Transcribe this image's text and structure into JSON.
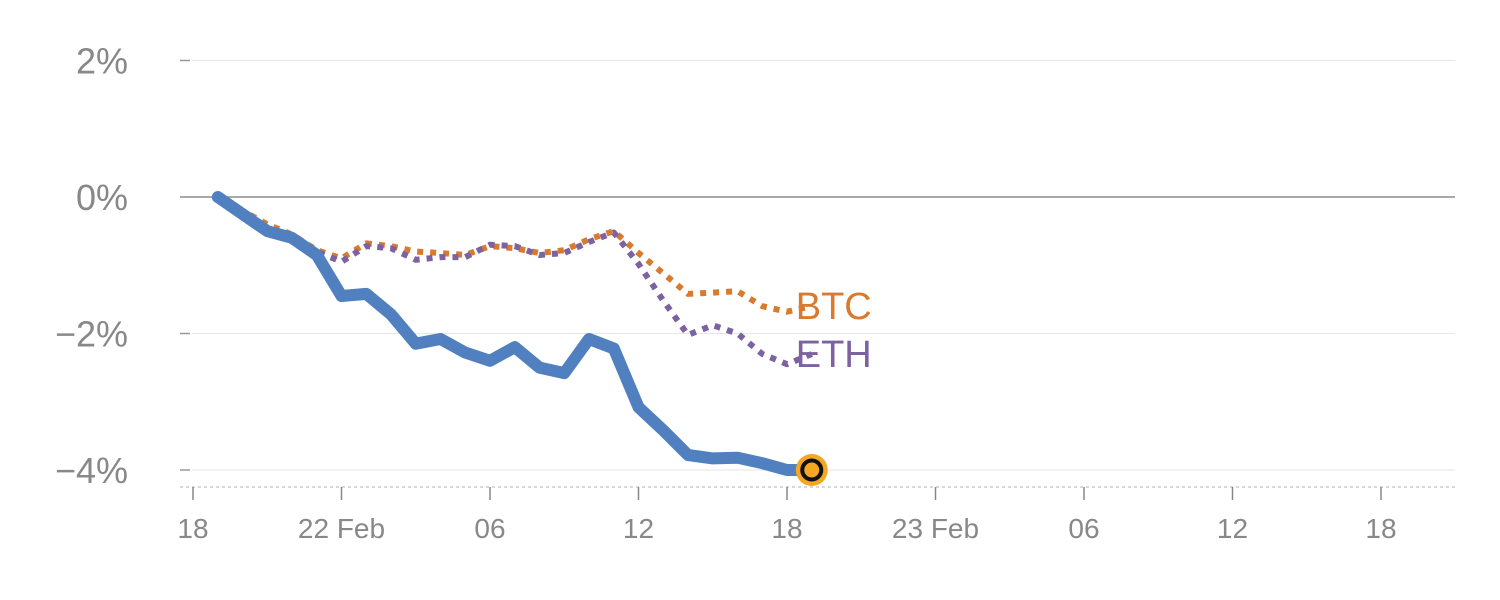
{
  "chart_data": {
    "type": "line",
    "title": "",
    "xlabel": "",
    "ylabel": "",
    "x_range": [
      "2022-02-21T18:00",
      "2022-02-23T21:00"
    ],
    "ylim": [
      -4.25,
      2.2
    ],
    "y_ticks": [
      2,
      0,
      -2,
      -4
    ],
    "y_tick_labels": [
      "2%",
      "0%",
      "−2%",
      "−4%"
    ],
    "x_ticks": [
      {
        "t": "2022-02-21T18:00",
        "label": "18"
      },
      {
        "t": "2022-02-22T00:00",
        "label": "22 Feb"
      },
      {
        "t": "2022-02-22T06:00",
        "label": "06"
      },
      {
        "t": "2022-02-22T12:00",
        "label": "12"
      },
      {
        "t": "2022-02-22T18:00",
        "label": "18"
      },
      {
        "t": "2022-02-23T00:00",
        "label": "23 Feb"
      },
      {
        "t": "2022-02-23T06:00",
        "label": "06"
      },
      {
        "t": "2022-02-23T12:00",
        "label": "12"
      },
      {
        "t": "2022-02-23T18:00",
        "label": "18"
      }
    ],
    "grid": true,
    "series": [
      {
        "name": "",
        "color": "#5080bf",
        "style": "solid",
        "end_marker": true,
        "points": [
          [
            "2022-02-21T19:00",
            0.0
          ],
          [
            "2022-02-21T20:00",
            -0.25
          ],
          [
            "2022-02-21T21:00",
            -0.5
          ],
          [
            "2022-02-21T22:00",
            -0.6
          ],
          [
            "2022-02-21T23:00",
            -0.85
          ],
          [
            "2022-02-22T00:00",
            -1.45
          ],
          [
            "2022-02-22T01:00",
            -1.42
          ],
          [
            "2022-02-22T02:00",
            -1.72
          ],
          [
            "2022-02-22T03:00",
            -2.15
          ],
          [
            "2022-02-22T04:00",
            -2.08
          ],
          [
            "2022-02-22T05:00",
            -2.28
          ],
          [
            "2022-02-22T06:00",
            -2.4
          ],
          [
            "2022-02-22T07:00",
            -2.2
          ],
          [
            "2022-02-22T08:00",
            -2.5
          ],
          [
            "2022-02-22T09:00",
            -2.58
          ],
          [
            "2022-02-22T10:00",
            -2.08
          ],
          [
            "2022-02-22T11:00",
            -2.22
          ],
          [
            "2022-02-22T12:00",
            -3.08
          ],
          [
            "2022-02-22T13:00",
            -3.42
          ],
          [
            "2022-02-22T14:00",
            -3.78
          ],
          [
            "2022-02-22T15:00",
            -3.83
          ],
          [
            "2022-02-22T16:00",
            -3.82
          ],
          [
            "2022-02-22T17:00",
            -3.9
          ],
          [
            "2022-02-22T18:00",
            -4.0
          ],
          [
            "2022-02-22T19:00",
            -4.0
          ]
        ]
      },
      {
        "name": "BTC",
        "color": "#d97b2f",
        "style": "dotted",
        "points": [
          [
            "2022-02-21T19:00",
            0.05
          ],
          [
            "2022-02-21T20:00",
            -0.2
          ],
          [
            "2022-02-21T21:00",
            -0.4
          ],
          [
            "2022-02-21T22:00",
            -0.55
          ],
          [
            "2022-02-21T23:00",
            -0.78
          ],
          [
            "2022-02-22T00:00",
            -0.9
          ],
          [
            "2022-02-22T01:00",
            -0.68
          ],
          [
            "2022-02-22T02:00",
            -0.72
          ],
          [
            "2022-02-22T03:00",
            -0.8
          ],
          [
            "2022-02-22T04:00",
            -0.82
          ],
          [
            "2022-02-22T05:00",
            -0.85
          ],
          [
            "2022-02-22T06:00",
            -0.72
          ],
          [
            "2022-02-22T07:00",
            -0.75
          ],
          [
            "2022-02-22T08:00",
            -0.82
          ],
          [
            "2022-02-22T09:00",
            -0.78
          ],
          [
            "2022-02-22T10:00",
            -0.62
          ],
          [
            "2022-02-22T11:00",
            -0.5
          ],
          [
            "2022-02-22T12:00",
            -0.82
          ],
          [
            "2022-02-22T13:00",
            -1.12
          ],
          [
            "2022-02-22T14:00",
            -1.42
          ],
          [
            "2022-02-22T15:00",
            -1.4
          ],
          [
            "2022-02-22T16:00",
            -1.38
          ],
          [
            "2022-02-22T17:00",
            -1.6
          ],
          [
            "2022-02-22T18:00",
            -1.68
          ],
          [
            "2022-02-22T19:00",
            -1.6
          ]
        ]
      },
      {
        "name": "ETH",
        "color": "#7c62a1",
        "style": "dotted",
        "points": [
          [
            "2022-02-21T19:00",
            0.0
          ],
          [
            "2022-02-21T20:00",
            -0.28
          ],
          [
            "2022-02-21T21:00",
            -0.55
          ],
          [
            "2022-02-21T22:00",
            -0.62
          ],
          [
            "2022-02-21T23:00",
            -0.8
          ],
          [
            "2022-02-22T00:00",
            -0.95
          ],
          [
            "2022-02-22T01:00",
            -0.72
          ],
          [
            "2022-02-22T02:00",
            -0.75
          ],
          [
            "2022-02-22T03:00",
            -0.92
          ],
          [
            "2022-02-22T04:00",
            -0.88
          ],
          [
            "2022-02-22T05:00",
            -0.88
          ],
          [
            "2022-02-22T06:00",
            -0.7
          ],
          [
            "2022-02-22T07:00",
            -0.72
          ],
          [
            "2022-02-22T08:00",
            -0.85
          ],
          [
            "2022-02-22T09:00",
            -0.82
          ],
          [
            "2022-02-22T10:00",
            -0.66
          ],
          [
            "2022-02-22T11:00",
            -0.52
          ],
          [
            "2022-02-22T12:00",
            -0.98
          ],
          [
            "2022-02-22T13:00",
            -1.52
          ],
          [
            "2022-02-22T14:00",
            -2.02
          ],
          [
            "2022-02-22T15:00",
            -1.88
          ],
          [
            "2022-02-22T16:00",
            -2.0
          ],
          [
            "2022-02-22T17:00",
            -2.3
          ],
          [
            "2022-02-22T18:00",
            -2.45
          ],
          [
            "2022-02-22T19:00",
            -2.3
          ]
        ]
      }
    ]
  }
}
